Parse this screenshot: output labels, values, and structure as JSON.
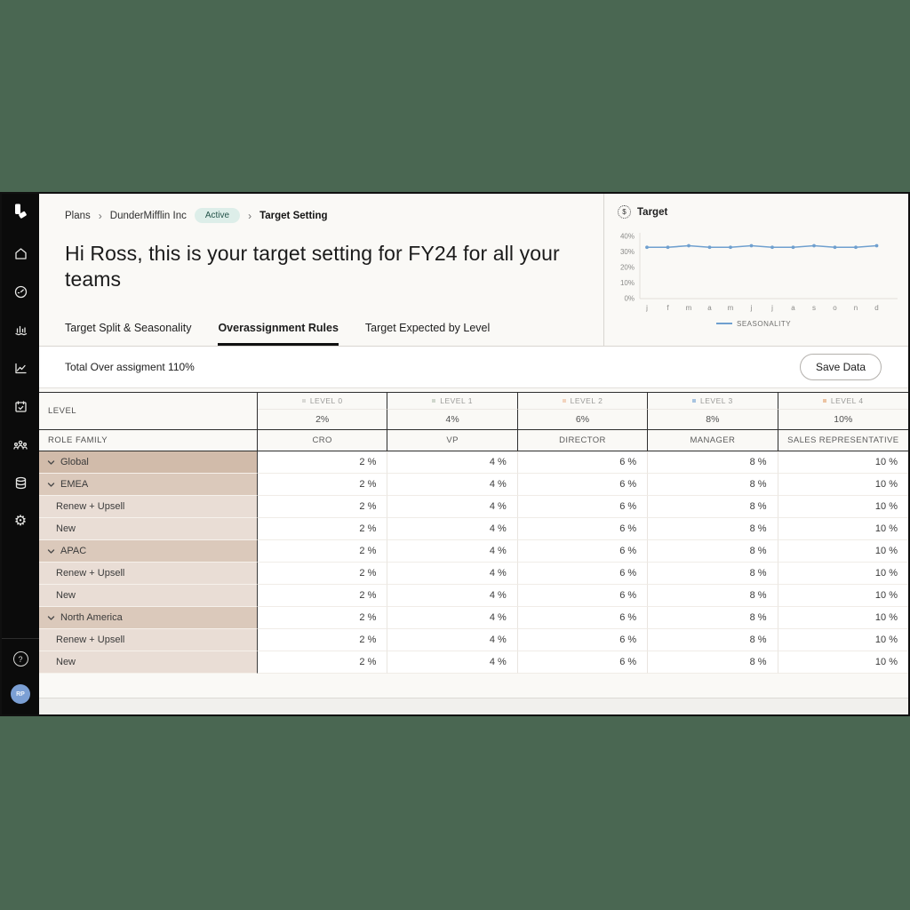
{
  "theme": {
    "desktop_background": "#4a6752",
    "sidebar_background": "#0b0b0b",
    "content_background": "#faf9f6",
    "accent_badge_bg": "#ddeee9",
    "accent_badge_text": "#24544a",
    "chart_line_color": "#6fa0cf",
    "avatar_color": "#7b9fd4"
  },
  "sidebar": {
    "icons": [
      "app-logo",
      "home-icon",
      "gauge-icon",
      "waterfall-chart-icon",
      "line-chart-icon",
      "calendar-check-icon",
      "team-icon",
      "database-icon",
      "gear-icon",
      "help-icon"
    ],
    "avatar_initials": "RP"
  },
  "breadcrumb": {
    "items": [
      "Plans",
      "DunderMifflin Inc",
      "Target Setting"
    ],
    "badge": "Active"
  },
  "heading": "Hi Ross, this is your target setting for FY24 for all your teams",
  "tabs": [
    {
      "label": "Target Split & Seasonality",
      "active": false
    },
    {
      "label": "Overassignment Rules",
      "active": true
    },
    {
      "label": "Target Expected by Level",
      "active": false
    }
  ],
  "chart_data": {
    "type": "line",
    "title": "Target",
    "x": [
      "j",
      "f",
      "m",
      "a",
      "m",
      "j",
      "j",
      "a",
      "s",
      "o",
      "n",
      "d"
    ],
    "series": [
      {
        "name": "SEASONALITY",
        "values": [
          33,
          33,
          34,
          33,
          33,
          34,
          33,
          33,
          34,
          33,
          33,
          34
        ]
      }
    ],
    "yticks": [
      0,
      10,
      20,
      30,
      40
    ],
    "ytick_suffix": "%",
    "ylim": [
      0,
      40
    ],
    "grid": false,
    "legend_position": "bottom",
    "line_color": "#6fa0cf"
  },
  "toolbar": {
    "total_label": "Total Over assigment 110%",
    "save_label": "Save Data"
  },
  "table": {
    "level_header": "LEVEL",
    "role_family_header": "ROLE FAMILY",
    "columns": [
      {
        "level": "LEVEL 0",
        "dot_color": "#d9d9d5",
        "pct": "2%",
        "role": "CRO"
      },
      {
        "level": "LEVEL 1",
        "dot_color": "#cfd6cc",
        "pct": "4%",
        "role": "VP"
      },
      {
        "level": "LEVEL 2",
        "dot_color": "#f2d3bd",
        "pct": "6%",
        "role": "DIRECTOR"
      },
      {
        "level": "LEVEL 3",
        "dot_color": "#a7c4e0",
        "pct": "8%",
        "role": "MANAGER"
      },
      {
        "level": "LEVEL 4",
        "dot_color": "#ecc3a2",
        "pct": "10%",
        "role": "SALES REPRESENTATIVE"
      }
    ],
    "value_suffix": " %",
    "row_colors": {
      "root": "#d1bbaa",
      "region": "#dbc9bb",
      "child": "#e9ddd5"
    },
    "rows": [
      {
        "label": "Global",
        "indent": "root",
        "expandable": true,
        "values": [
          2,
          4,
          6,
          8,
          10
        ]
      },
      {
        "label": "EMEA",
        "indent": "region",
        "expandable": true,
        "values": [
          2,
          4,
          6,
          8,
          10
        ]
      },
      {
        "label": "Renew + Upsell",
        "indent": "child",
        "expandable": false,
        "values": [
          2,
          4,
          6,
          8,
          10
        ]
      },
      {
        "label": "New",
        "indent": "child",
        "expandable": false,
        "values": [
          2,
          4,
          6,
          8,
          10
        ]
      },
      {
        "label": "APAC",
        "indent": "region",
        "expandable": true,
        "values": [
          2,
          4,
          6,
          8,
          10
        ]
      },
      {
        "label": "Renew + Upsell",
        "indent": "child",
        "expandable": false,
        "values": [
          2,
          4,
          6,
          8,
          10
        ]
      },
      {
        "label": "New",
        "indent": "child",
        "expandable": false,
        "values": [
          2,
          4,
          6,
          8,
          10
        ]
      },
      {
        "label": "North America",
        "indent": "region",
        "expandable": true,
        "values": [
          2,
          4,
          6,
          8,
          10
        ]
      },
      {
        "label": "Renew + Upsell",
        "indent": "child",
        "expandable": false,
        "values": [
          2,
          4,
          6,
          8,
          10
        ]
      },
      {
        "label": "New",
        "indent": "child",
        "expandable": false,
        "values": [
          2,
          4,
          6,
          8,
          10
        ]
      }
    ]
  }
}
